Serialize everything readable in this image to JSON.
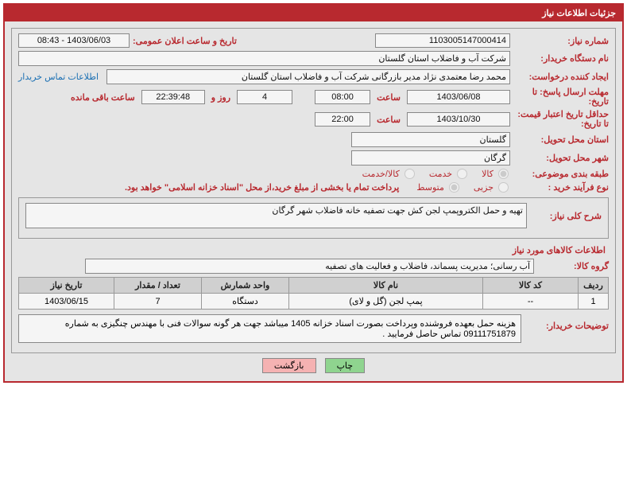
{
  "header_title": "جزئیات اطلاعات نیاز",
  "labels": {
    "need_no": "شماره نیاز:",
    "announce_dt": "تاریخ و ساعت اعلان عمومی:",
    "buyer_org": "نام دستگاه خریدار:",
    "requester": "ایجاد کننده درخواست:",
    "deadline": "مهلت ارسال پاسخ: تا تاریخ:",
    "hour": "ساعت",
    "days_and": "روز و",
    "remaining": "ساعت باقی مانده",
    "validity": "حداقل تاریخ اعتبار قیمت: تا تاریخ:",
    "delivery_province": "استان محل تحویل:",
    "delivery_city": "شهر محل تحویل:",
    "classification": "طبقه بندی موضوعی:",
    "purchase_type": "نوع فرآیند خرید :",
    "contact_link": "اطلاعات تماس خریدار",
    "need_desc": "شرح کلی نیاز:",
    "goods_info": "اطلاعات کالاهای مورد نیاز",
    "goods_group": "گروه کالا:",
    "buyer_notes": "توضیحات خریدار:",
    "radio_goods": "کالا",
    "radio_service": "خدمت",
    "radio_goods_service": "کالا/خدمت",
    "radio_partial": "جزیی",
    "radio_medium": "متوسط",
    "btn_print": "چاپ",
    "btn_back": "بازگشت"
  },
  "values": {
    "need_no": "1103005147000414",
    "announce_dt": "1403/06/03 - 08:43",
    "buyer_org": "شرکت آب و فاضلاب استان گلستان",
    "requester": "محمد رضا معتمدی نژاد مدیر بازرگانی شرکت آب و فاضلاب استان گلستان",
    "deadline_date": "1403/06/08",
    "deadline_time": "08:00",
    "remaining_days": "4",
    "remaining_time": "22:39:48",
    "validity_date": "1403/10/30",
    "validity_time": "22:00",
    "delivery_province": "گلستان",
    "delivery_city": "گرگان",
    "purchase_note": "پرداخت تمام یا بخشی از مبلغ خرید،از محل \"اسناد خزانه اسلامی\" خواهد بود.",
    "need_desc": "تهیه و حمل الکتروپمپ لجن کش جهت تصفیه خانه فاضلاب شهر گرگان",
    "goods_group": "آب رسانی؛ مدیریت پسماند، فاضلاب و فعالیت های تصفیه",
    "buyer_notes": "هزینه حمل بعهده فروشنده وپرداخت بصورت اسناد خزانه 1405 میباشد جهت هر گونه سوالات فنی با مهندس چنگیزی به شماره 09111751879 تماس حاصل فرمایید ."
  },
  "table": {
    "headers": [
      "ردیف",
      "کد کالا",
      "نام کالا",
      "واحد شمارش",
      "تعداد / مقدار",
      "تاریخ نیاز"
    ],
    "rows": [
      [
        "1",
        "--",
        "پمپ لجن (گل و لای)",
        "دستگاه",
        "7",
        "1403/06/15"
      ]
    ],
    "col_widths": [
      "38px",
      "120px",
      "auto",
      "110px",
      "110px",
      "120px"
    ]
  },
  "watermark": "AriaTender.net",
  "colors": {
    "accent": "#b8292f",
    "bg": "#e5e5e5",
    "border": "#999",
    "link": "#1a6fb3"
  }
}
